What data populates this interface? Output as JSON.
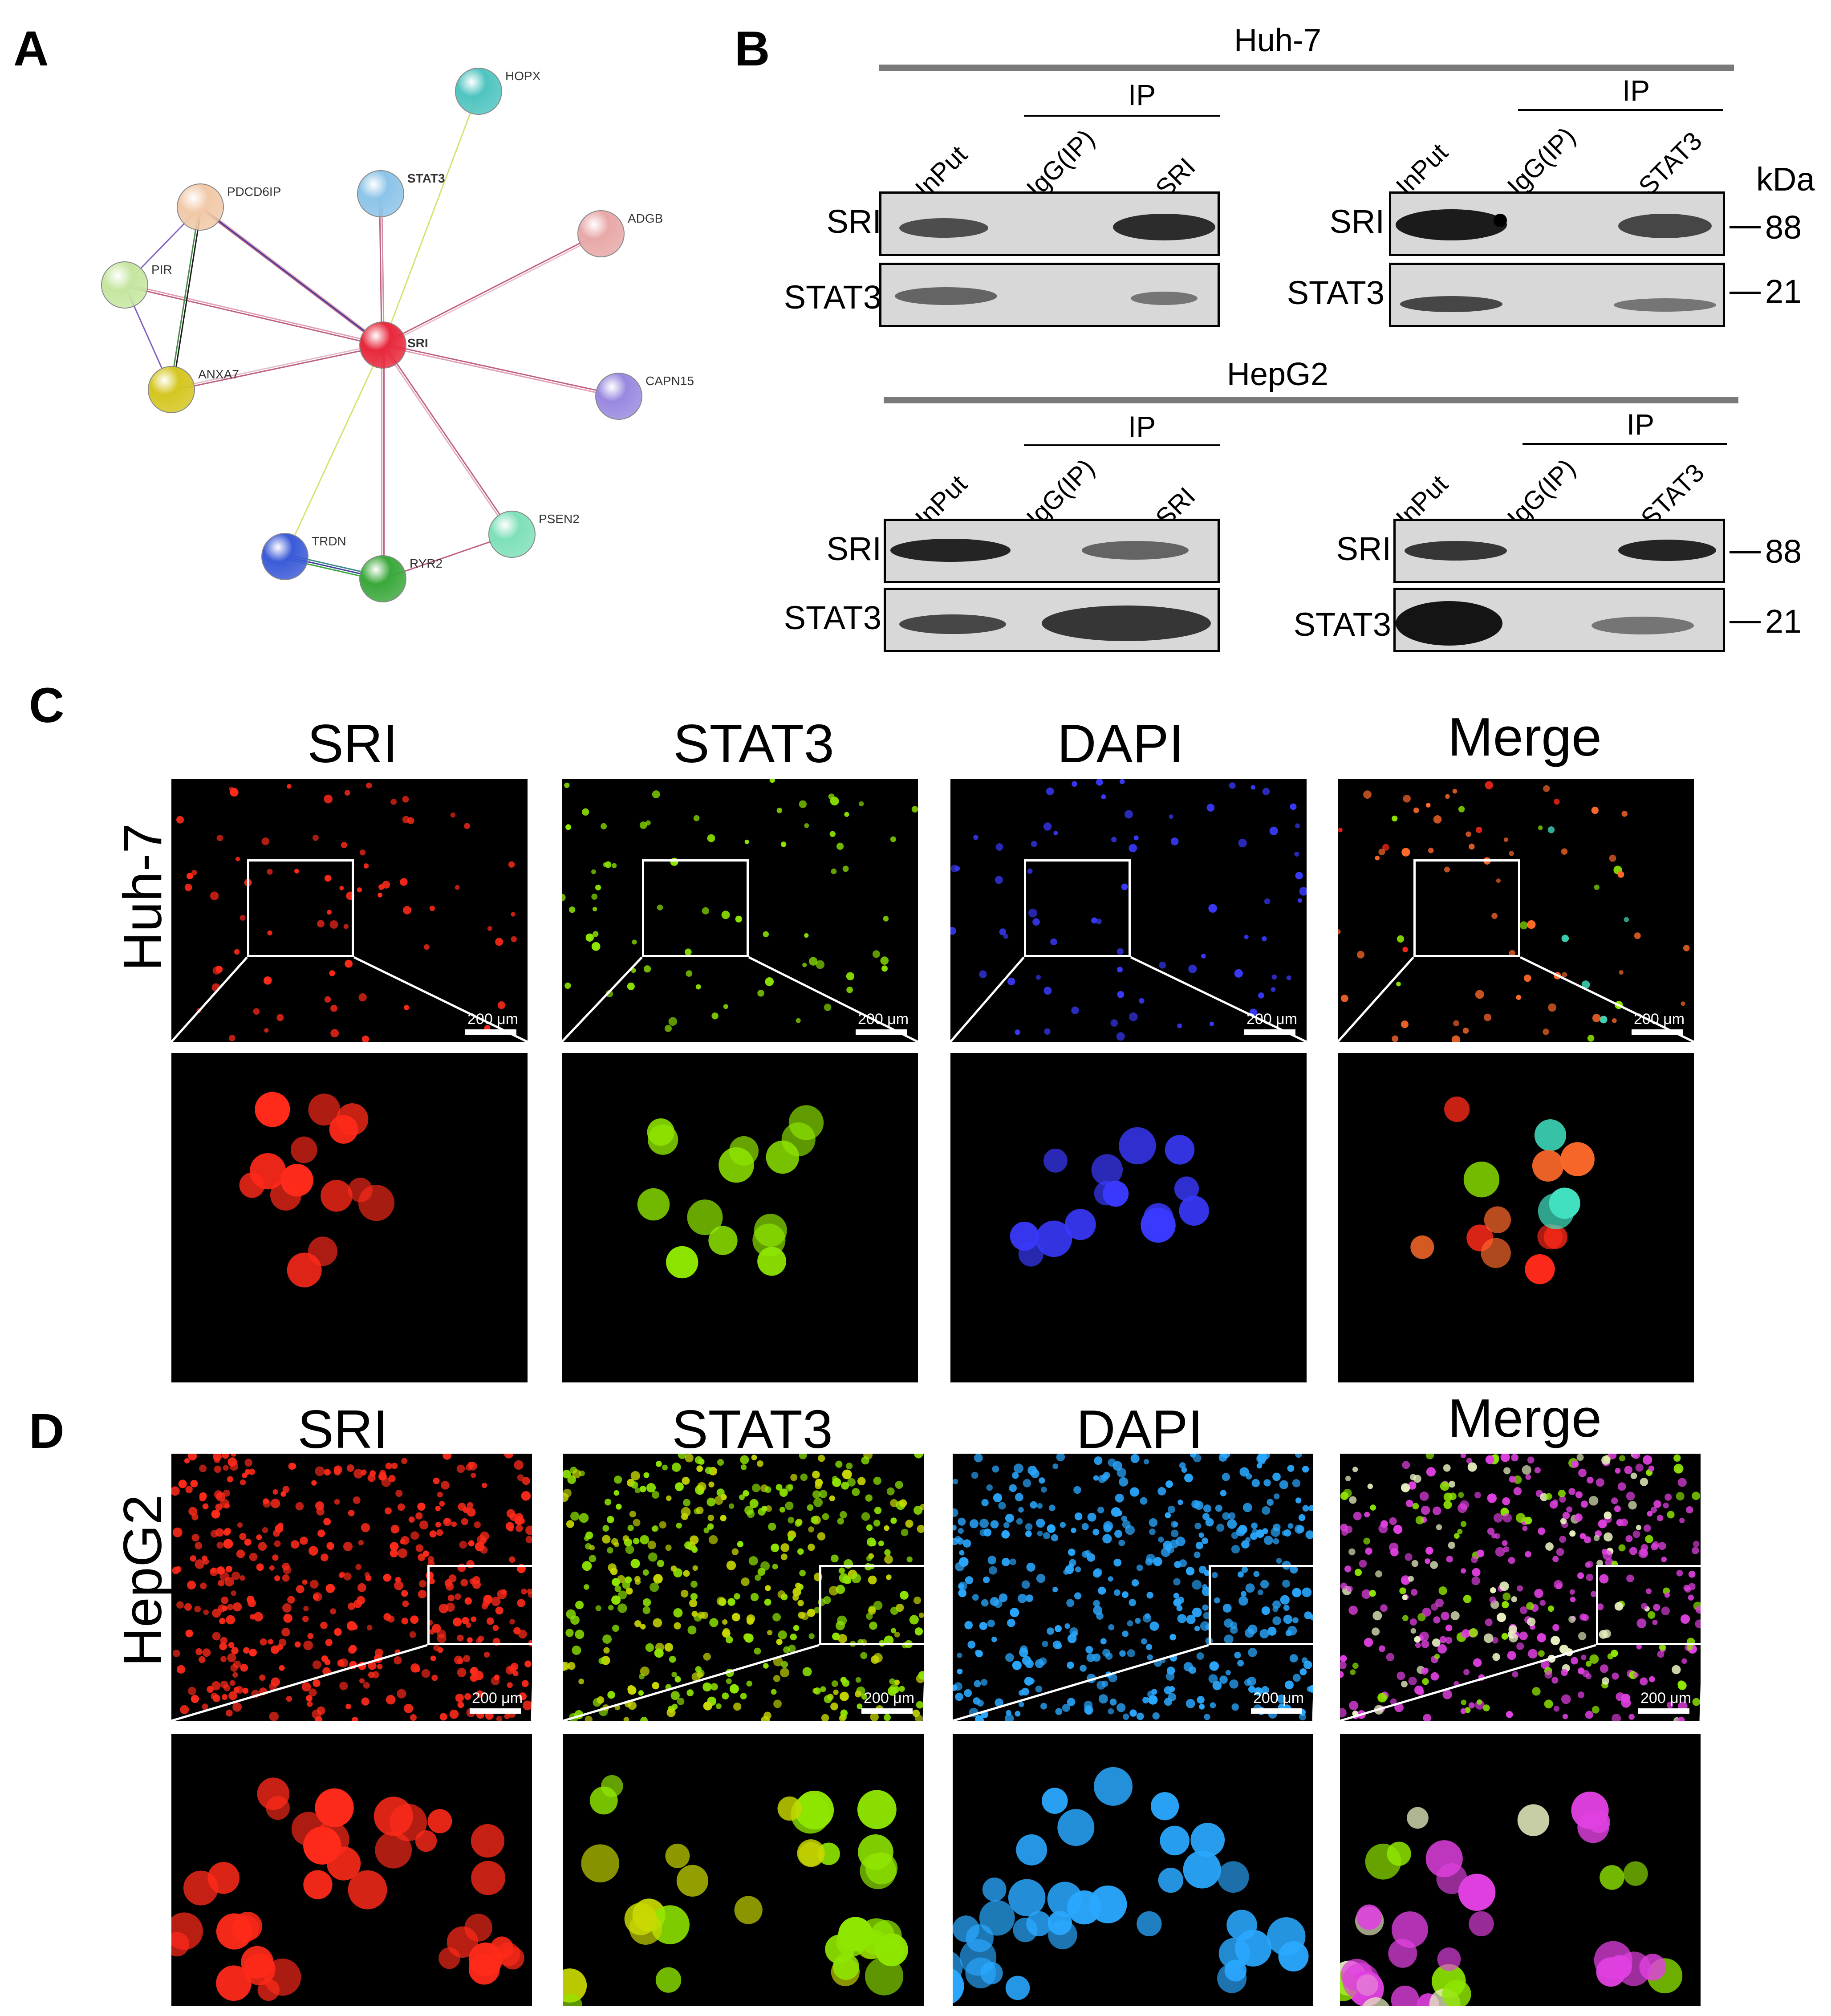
{
  "panel_letters": {
    "a": "A",
    "b": "B",
    "c": "C",
    "d": "D"
  },
  "network": {
    "center": "SRI",
    "nodes": [
      {
        "id": "HOPX",
        "label": "HOPX",
        "color": "#4fc4c0"
      },
      {
        "id": "STAT3",
        "label": "STAT3",
        "color": "#8cc4e8"
      },
      {
        "id": "PDCD6IP",
        "label": "PDCD6IP",
        "color": "#f1c9a8"
      },
      {
        "id": "ADGB",
        "label": "ADGB",
        "color": "#e8a8a8"
      },
      {
        "id": "PIR",
        "label": "PIR",
        "color": "#c6e6a0"
      },
      {
        "id": "SRI",
        "label": "SRI",
        "color": "#e8283c"
      },
      {
        "id": "ANXA7",
        "label": "ANXA7",
        "color": "#d4c620"
      },
      {
        "id": "CAPN15",
        "label": "CAPN15",
        "color": "#9a88e0"
      },
      {
        "id": "PSEN2",
        "label": "PSEN2",
        "color": "#7ee0b8"
      },
      {
        "id": "TRDN",
        "label": "TRDN",
        "color": "#3a5ad8"
      },
      {
        "id": "RYR2",
        "label": "RYR2",
        "color": "#3aa83a"
      }
    ]
  },
  "blots": {
    "huh7_title": "Huh-7",
    "hepg2_title": "HepG2",
    "ip_label": "IP",
    "lanes_left": [
      "InPut",
      "IgG(IP)",
      "SRI"
    ],
    "lanes_right": [
      "InPut",
      "IgG(IP)",
      "STAT3"
    ],
    "row_labels": [
      "SRI",
      "STAT3"
    ],
    "kda_label": "kDa",
    "kda_values": [
      "88",
      "21"
    ]
  },
  "microscopy": {
    "columns": [
      "SRI",
      "STAT3",
      "DAPI",
      "Merge"
    ],
    "row_c": "Huh-7",
    "row_d": "HepG2",
    "scale": "200 μm",
    "channel_colors": {
      "SRI": "#ff2a1a",
      "STAT3": "#8fe600",
      "DAPI_c": "#3a3aff",
      "DAPI_d": "#2aa8ff",
      "Merge_c": "#ff6a2a",
      "Merge_d": "#e040e0"
    }
  }
}
